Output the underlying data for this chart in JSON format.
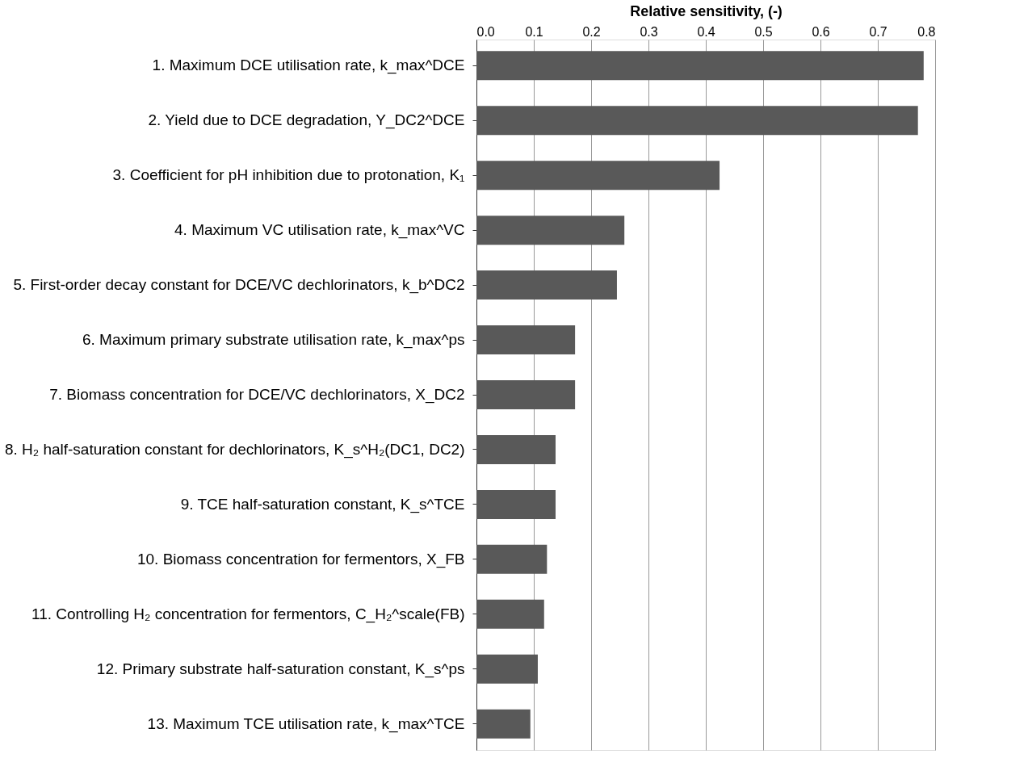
{
  "chart_data": {
    "type": "bar",
    "orientation": "horizontal",
    "xlabel": "Relative sensitivity,      (-)",
    "categories": [
      "1. Maximum DCE utilisation rate, k_max^DCE",
      "2. Yield due to DCE degradation, Y_DC2^DCE",
      "3. Coefficient for pH inhibition due to protonation, K₁",
      "4. Maximum VC utilisation rate, k_max^VC",
      "5. First-order decay constant for DCE/VC dechlorinators, k_b^DC2",
      "6. Maximum primary substrate utilisation rate, k_max^ps",
      "7. Biomass concentration for DCE/VC dechlorinators, X_DC2",
      "8. H₂ half-saturation constant for dechlorinators, K_s^H₂(DC1, DC2)",
      "9. TCE half-saturation constant, K_s^TCE",
      "10. Biomass concentration for fermentors, X_FB",
      "11. Controlling H₂ concentration for fermentors, C_H₂^scale(FB)",
      "12. Primary substrate half-saturation constant, K_s^ps",
      "13. Maximum TCE utilisation rate, k_max^TCE"
    ],
    "values": [
      0.78,
      0.77,
      0.424,
      0.258,
      0.245,
      0.172,
      0.172,
      0.138,
      0.138,
      0.123,
      0.118,
      0.107,
      0.094
    ],
    "color": "#595959",
    "xlim": [
      0,
      0.8
    ],
    "xticks": [
      {
        "value": 0,
        "label": "0.0"
      },
      0.1,
      0.2,
      0.3,
      0.4,
      0.5,
      0.6,
      0.7,
      0.8
    ],
    "grid": "x"
  }
}
